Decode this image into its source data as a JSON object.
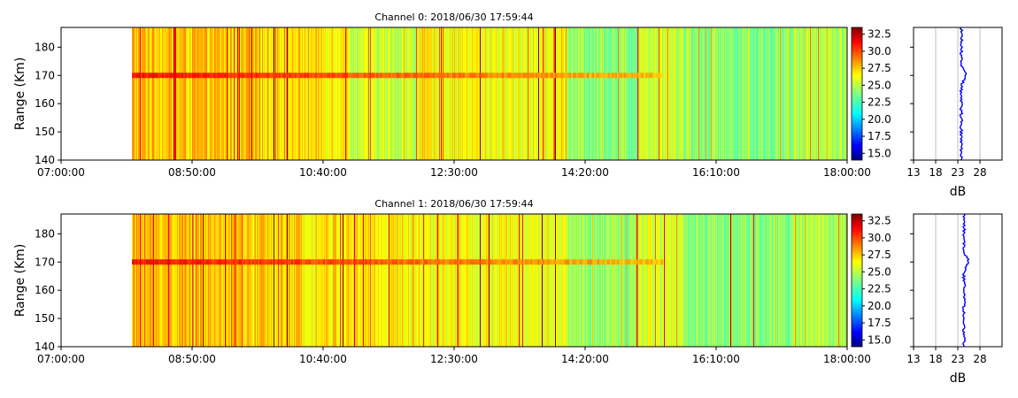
{
  "chart_data": [
    {
      "type": "heatmap",
      "title": "Channel 0: 2018/06/30 17:59:44",
      "ylabel": "Range (Km)",
      "xlabel": "",
      "x_tick_labels": [
        "07:00:00",
        "08:50:00",
        "10:40:00",
        "12:30:00",
        "14:20:00",
        "16:10:00",
        "18:00:00"
      ],
      "xlim": [
        "07:00:00",
        "18:00:00"
      ],
      "data_start": "08:00:00",
      "y_ticks": [
        140,
        150,
        160,
        170,
        180
      ],
      "ylim": [
        140,
        187
      ],
      "colorscale": "jet",
      "colorbar_range": [
        14,
        33.5
      ],
      "colorbar_ticks": [
        "15.0",
        "17.5",
        "20.0",
        "22.5",
        "25.0",
        "27.5",
        "30.0",
        "32.5"
      ],
      "echo_band_range_km": 170,
      "profile": {
        "xlabel": "dB",
        "x_ticks": [
          13,
          18,
          23,
          28
        ],
        "xlim": [
          13,
          33
        ],
        "mean_db": 23.8,
        "peak_at_km": 170,
        "peak_db": 24.8
      }
    },
    {
      "type": "heatmap",
      "title": "Channel 1: 2018/06/30 17:59:44",
      "ylabel": "Range (Km)",
      "xlabel": "",
      "x_tick_labels": [
        "07:00:00",
        "08:50:00",
        "10:40:00",
        "12:30:00",
        "14:20:00",
        "16:10:00",
        "18:00:00"
      ],
      "xlim": [
        "07:00:00",
        "18:00:00"
      ],
      "data_start": "08:00:00",
      "y_ticks": [
        140,
        150,
        160,
        170,
        180
      ],
      "ylim": [
        140,
        187
      ],
      "colorscale": "jet",
      "colorbar_range": [
        14,
        33.5
      ],
      "colorbar_ticks": [
        "15.0",
        "17.5",
        "20.0",
        "22.5",
        "25.0",
        "27.5",
        "30.0",
        "32.5"
      ],
      "echo_band_range_km": 170,
      "profile": {
        "xlabel": "dB",
        "x_ticks": [
          13,
          18,
          23,
          28
        ],
        "xlim": [
          13,
          33
        ],
        "mean_db": 24.4,
        "peak_at_km": 170,
        "peak_db": 25.5
      }
    }
  ]
}
